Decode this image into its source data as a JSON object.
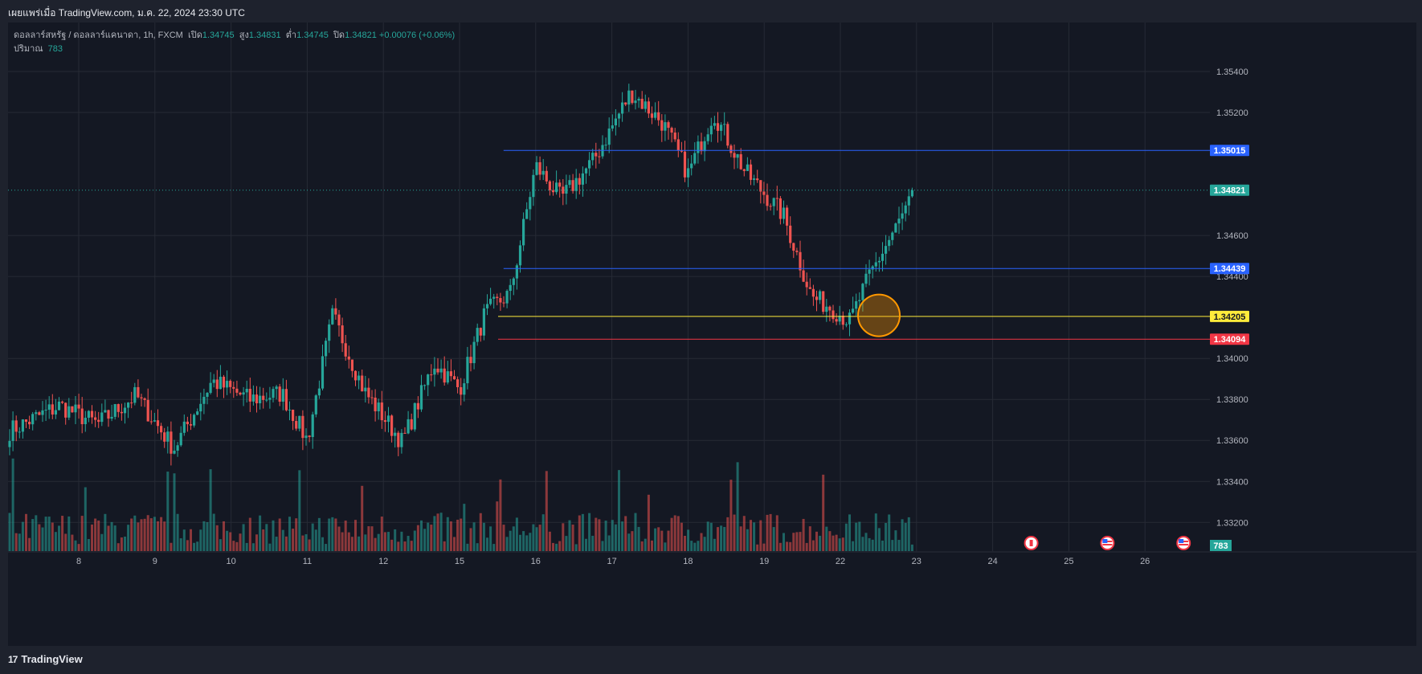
{
  "header": {
    "published": "เผยแพร่เมื่อ TradingView.com, ม.ค. 22, 2024 23:30 UTC"
  },
  "legend": {
    "symbol": "ดอลลาร์สหรัฐ / ดอลลาร์แคนาดา, 1h, FXCM",
    "open_label": "เปิด",
    "open": "1.34745",
    "high_label": "สูง",
    "high": "1.34831",
    "low_label": "ต่ำ",
    "low": "1.34745",
    "close_label": "ปิด",
    "close": "1.34821",
    "change": "+0.00076 (+0.06%)",
    "volume_label": "ปริมาณ",
    "volume": "783"
  },
  "footer": {
    "brand": "TradingView",
    "logo_text": "17"
  },
  "colors": {
    "up": "#26a69a",
    "down": "#ef5350",
    "blue_line": "#2962ff",
    "yellow_line": "#ffeb3b",
    "red_line": "#f23645",
    "circle": "#ff9800",
    "bg": "#141823"
  },
  "chart_data": {
    "type": "candlestick",
    "symbol": "USDCAD",
    "timeframe": "1h",
    "x_ticks": [
      "8",
      "9",
      "10",
      "11",
      "12",
      "15",
      "16",
      "17",
      "18",
      "19",
      "22",
      "23",
      "24",
      "25",
      "26"
    ],
    "y_ticks": [
      "1.35400",
      "1.35200",
      "1.34600",
      "1.34400",
      "1.34000",
      "1.33800",
      "1.33600",
      "1.33400",
      "1.33200"
    ],
    "ylim": [
      1.3306,
      1.356
    ],
    "price_levels": [
      {
        "label": "1.35015",
        "value": 1.35015,
        "color": "#2962ff",
        "from": "16"
      },
      {
        "label": "1.34439",
        "value": 1.34439,
        "color": "#2962ff",
        "from": "16"
      },
      {
        "label": "1.34205",
        "value": 1.34205,
        "color": "#ffeb3b",
        "from": "15"
      },
      {
        "label": "1.34094",
        "value": 1.34094,
        "color": "#f23645",
        "from": "15"
      }
    ],
    "last_price": {
      "label": "1.34821",
      "value": 1.34821
    },
    "volume_badge": "783",
    "highlight": {
      "type": "circle",
      "near": "22",
      "price": 1.3421,
      "color": "#ff9800"
    },
    "event_icons": [
      "canada-flag-icon",
      "us-flag-icon",
      "us-flag-icon"
    ],
    "path": [
      [
        "7",
        1.3363
      ],
      [
        "8",
        1.3377
      ],
      [
        "8",
        1.3368
      ],
      [
        "9",
        1.3382
      ],
      [
        "9",
        1.3356
      ],
      [
        "10",
        1.3389
      ],
      [
        "10",
        1.338
      ],
      [
        "11",
        1.3383
      ],
      [
        "11",
        1.336
      ],
      [
        "11",
        1.3421
      ],
      [
        "12",
        1.3384
      ],
      [
        "12",
        1.3359
      ],
      [
        "15",
        1.3398
      ],
      [
        "15",
        1.3385
      ],
      [
        "15",
        1.3422
      ],
      [
        "16",
        1.3432
      ],
      [
        "16",
        1.3494
      ],
      [
        "16",
        1.3478
      ],
      [
        "17",
        1.3496
      ],
      [
        "17",
        1.353
      ],
      [
        "18",
        1.3515
      ],
      [
        "18",
        1.349
      ],
      [
        "18",
        1.352
      ],
      [
        "19",
        1.3491
      ],
      [
        "19",
        1.347
      ],
      [
        "22",
        1.343
      ],
      [
        "22",
        1.3425
      ],
      [
        "22",
        1.3418
      ],
      [
        "22",
        1.344
      ],
      [
        "23",
        1.3482
      ]
    ]
  }
}
